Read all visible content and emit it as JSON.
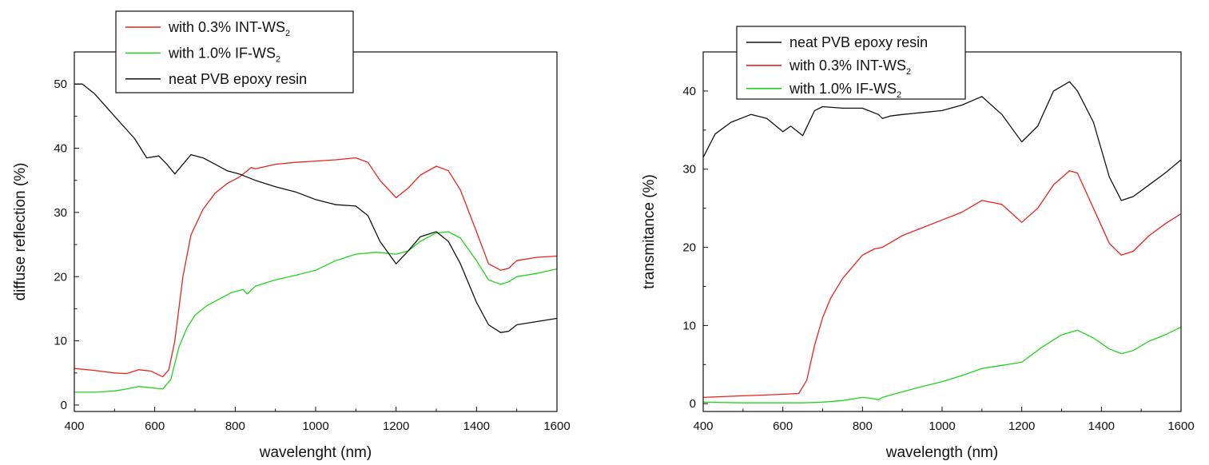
{
  "chart_data": [
    {
      "type": "line",
      "xlabel": "wavelenght (nm)",
      "ylabel": "diffuse reflection (%)",
      "xlim": [
        400,
        1600
      ],
      "ylim": [
        -1,
        55
      ],
      "xticks": [
        400,
        600,
        800,
        1000,
        1200,
        1400,
        1600
      ],
      "yticks": [
        0,
        10,
        20,
        30,
        40,
        50
      ],
      "legend_position": "top-left, above plot",
      "series": [
        {
          "name": "with 0.3% INT-WS",
          "name_sub": "2",
          "color": "#e8231a",
          "x": [
            400,
            450,
            500,
            530,
            560,
            590,
            620,
            635,
            650,
            670,
            690,
            720,
            750,
            780,
            810,
            840,
            850,
            900,
            950,
            1000,
            1050,
            1100,
            1130,
            1160,
            1200,
            1230,
            1260,
            1300,
            1330,
            1360,
            1400,
            1430,
            1460,
            1480,
            1500,
            1550,
            1600
          ],
          "y": [
            5.7,
            5.4,
            5.0,
            4.9,
            5.5,
            5.3,
            4.4,
            5.5,
            10,
            20,
            26.5,
            30.5,
            33,
            34.5,
            35.5,
            37,
            36.8,
            37.5,
            37.8,
            38,
            38.2,
            38.5,
            37.8,
            35,
            32.3,
            33.8,
            35.8,
            37.2,
            36.5,
            33.5,
            27,
            22,
            21,
            21.3,
            22.5,
            23,
            23.2
          ]
        },
        {
          "name": "with 1.0% IF-WS",
          "name_sub": "2",
          "color": "#22d31f",
          "x": [
            400,
            450,
            500,
            530,
            560,
            590,
            620,
            640,
            660,
            680,
            700,
            730,
            760,
            790,
            820,
            830,
            850,
            900,
            950,
            1000,
            1050,
            1100,
            1150,
            1200,
            1230,
            1260,
            1300,
            1330,
            1360,
            1400,
            1430,
            1460,
            1480,
            1500,
            1550,
            1600
          ],
          "y": [
            2.0,
            2.0,
            2.2,
            2.5,
            2.9,
            2.7,
            2.5,
            4,
            9,
            12,
            14,
            15.5,
            16.5,
            17.5,
            18,
            17.3,
            18.5,
            19.5,
            20.2,
            21,
            22.5,
            23.5,
            23.8,
            23.5,
            24,
            25.5,
            26.8,
            27,
            26,
            22.5,
            19.5,
            18.8,
            19.2,
            20,
            20.5,
            21.2
          ]
        },
        {
          "name": "neat PVB epoxy resin",
          "color": "#111111",
          "x": [
            400,
            420,
            450,
            500,
            550,
            580,
            610,
            630,
            650,
            670,
            690,
            720,
            750,
            780,
            810,
            830,
            850,
            900,
            950,
            1000,
            1050,
            1100,
            1130,
            1160,
            1200,
            1230,
            1260,
            1300,
            1330,
            1360,
            1400,
            1430,
            1460,
            1480,
            1500,
            1550,
            1600
          ],
          "y": [
            50,
            50,
            48.5,
            45,
            41.5,
            38.5,
            38.8,
            37.5,
            36,
            37.5,
            39,
            38.5,
            37.5,
            36.5,
            36,
            35.5,
            35,
            34,
            33.2,
            32,
            31.2,
            31,
            29.5,
            25.5,
            22,
            24,
            26.2,
            27,
            25.5,
            22,
            16,
            12.5,
            11.3,
            11.5,
            12.5,
            13,
            13.5
          ]
        }
      ]
    },
    {
      "type": "line",
      "xlabel": "wavelength (nm)",
      "ylabel": "transmitance (%)",
      "xlim": [
        400,
        1600
      ],
      "ylim": [
        -1,
        45
      ],
      "xticks": [
        400,
        600,
        800,
        1000,
        1200,
        1400,
        1600
      ],
      "yticks": [
        0,
        10,
        20,
        30,
        40
      ],
      "legend_position": "top-left",
      "series": [
        {
          "name": "neat PVB epoxy resin",
          "color": "#111111",
          "x": [
            400,
            430,
            470,
            520,
            560,
            600,
            620,
            650,
            680,
            700,
            750,
            800,
            840,
            850,
            870,
            900,
            1000,
            1050,
            1100,
            1150,
            1200,
            1240,
            1280,
            1320,
            1340,
            1380,
            1420,
            1450,
            1480,
            1520,
            1560,
            1600
          ],
          "y": [
            31.5,
            34.5,
            36,
            37,
            36.5,
            34.8,
            35.5,
            34.3,
            37.5,
            38,
            37.8,
            37.8,
            37,
            36.5,
            36.8,
            37,
            37.5,
            38.2,
            39.3,
            37,
            33.5,
            35.5,
            40,
            41.2,
            40,
            36,
            29,
            26,
            26.5,
            28,
            29.5,
            31.2
          ]
        },
        {
          "name": "with 0.3% INT-WS",
          "name_sub": "2",
          "color": "#e8231a",
          "x": [
            400,
            450,
            500,
            550,
            600,
            640,
            660,
            680,
            700,
            720,
            750,
            800,
            830,
            850,
            900,
            950,
            1000,
            1050,
            1100,
            1150,
            1200,
            1240,
            1280,
            1320,
            1340,
            1380,
            1420,
            1450,
            1480,
            1520,
            1560,
            1600
          ],
          "y": [
            0.8,
            0.9,
            1.0,
            1.1,
            1.2,
            1.3,
            3,
            7.5,
            11,
            13.5,
            16,
            19,
            19.8,
            20,
            21.5,
            22.5,
            23.5,
            24.5,
            26,
            25.5,
            23.2,
            25,
            28,
            29.8,
            29.5,
            25,
            20.5,
            19,
            19.5,
            21.5,
            23,
            24.3
          ]
        },
        {
          "name": "with 1.0% IF-WS",
          "name_sub": "2",
          "color": "#22d31f",
          "x": [
            400,
            500,
            600,
            650,
            700,
            750,
            800,
            820,
            840,
            850,
            870,
            900,
            950,
            1000,
            1050,
            1100,
            1150,
            1200,
            1250,
            1300,
            1340,
            1380,
            1420,
            1450,
            1480,
            1520,
            1560,
            1600
          ],
          "y": [
            0.2,
            0.1,
            0.1,
            0.1,
            0.2,
            0.4,
            0.8,
            0.7,
            0.5,
            0.8,
            1.1,
            1.5,
            2.2,
            2.8,
            3.6,
            4.5,
            4.9,
            5.3,
            7.2,
            8.8,
            9.4,
            8.4,
            7,
            6.4,
            6.8,
            8,
            8.8,
            9.8
          ]
        }
      ]
    }
  ]
}
